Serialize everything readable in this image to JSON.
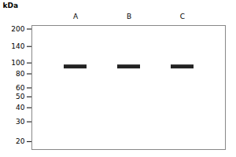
{
  "chart_data": {
    "type": "gel",
    "categories": [
      "A",
      "B",
      "C"
    ],
    "values": [
      93,
      93,
      93
    ],
    "color": "#222222",
    "ylabel": "kDa",
    "log": "y",
    "ylim": [
      17,
      215
    ],
    "yticks": [
      20,
      30,
      40,
      50,
      60,
      80,
      100,
      140,
      200
    ],
    "grid": false
  }
}
